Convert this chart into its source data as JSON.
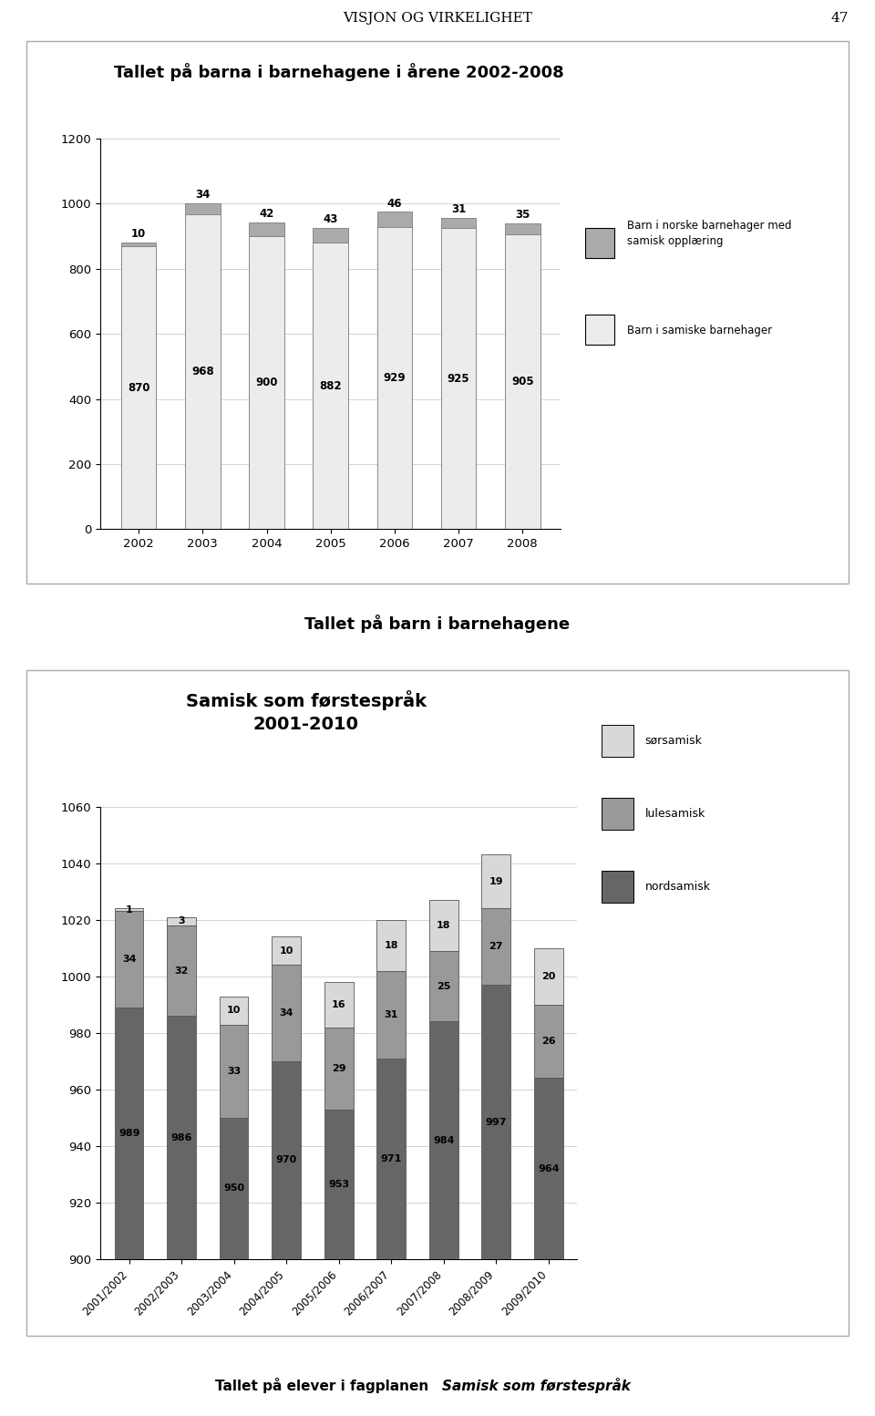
{
  "page_header": "VISJON OG VIRKELIGHET",
  "page_number": "47",
  "chart1_title": "Tallet på barna i barnehagene i årene 2002-2008",
  "chart1_years": [
    "2002",
    "2003",
    "2004",
    "2005",
    "2006",
    "2007",
    "2008"
  ],
  "chart1_norske": [
    870,
    968,
    900,
    882,
    929,
    925,
    905
  ],
  "chart1_samiske": [
    10,
    34,
    42,
    43,
    46,
    31,
    35
  ],
  "chart1_ylim": [
    0,
    1200
  ],
  "chart1_yticks": [
    0,
    200,
    400,
    600,
    800,
    1000,
    1200
  ],
  "chart1_legend1": "Barn i norske barnehager med\nsamisk opplæring",
  "chart1_legend2": "Barn i samiske barnehager",
  "chart1_color_norske": "#ececec",
  "chart1_color_samiske": "#aaaaaa",
  "between_text": "Tallet på barn i barnehagene",
  "chart2_title_line1": "Samisk som førstespråk",
  "chart2_title_line2": "2001-2010",
  "chart2_years": [
    "2001/2002",
    "2002/2003",
    "2003/2004",
    "2004/2005",
    "2005/2006",
    "2006/2007",
    "2007/2008",
    "2008/2009",
    "2009/2010"
  ],
  "chart2_sor": [
    1,
    3,
    10,
    10,
    16,
    18,
    18,
    19,
    20
  ],
  "chart2_lule": [
    34,
    32,
    33,
    34,
    29,
    31,
    25,
    27,
    26
  ],
  "chart2_nord": [
    989,
    986,
    950,
    970,
    953,
    971,
    984,
    997,
    964
  ],
  "chart2_ylim": [
    900,
    1060
  ],
  "chart2_yticks": [
    900,
    920,
    940,
    960,
    980,
    1000,
    1020,
    1040,
    1060
  ],
  "chart2_legend_sor": "sørsamisk",
  "chart2_legend_lule": "lulesamisk",
  "chart2_legend_nord": "nordsamisk",
  "chart2_color_sor": "#d8d8d8",
  "chart2_color_lule": "#999999",
  "chart2_color_nord": "#666666",
  "bottom_text_normal": "Tallet på elever i fagplanen ",
  "bottom_text_italic": "Samisk som førstespråk"
}
